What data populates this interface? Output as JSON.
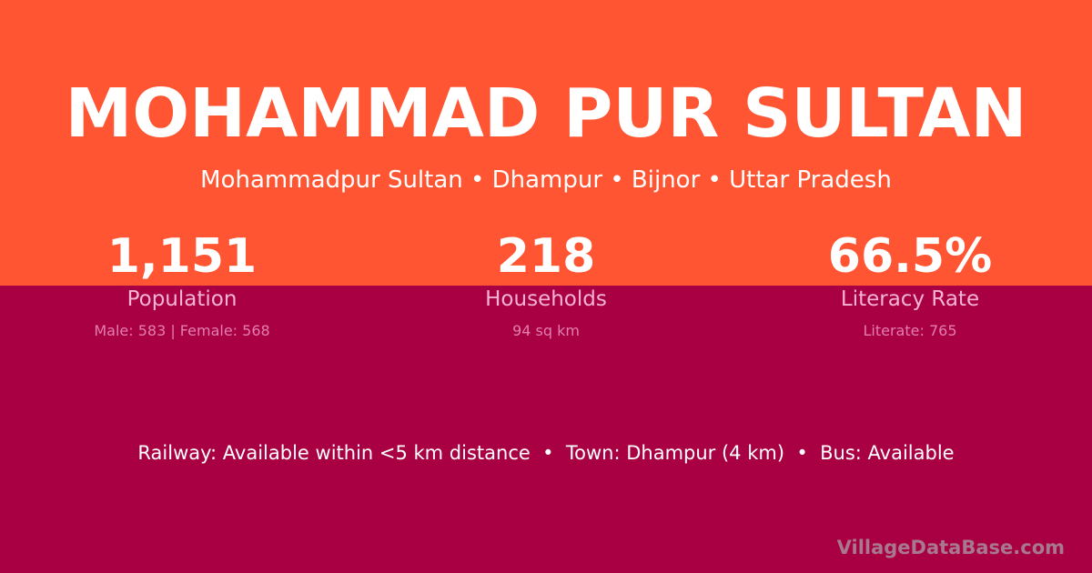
{
  "colors": {
    "top": "#ff5533",
    "bottom": "#a80042"
  },
  "title": "MOHAMMAD PUR SULTAN",
  "subtitle": "Mohammadpur Sultan • Dhampur • Bijnor • Uttar Pradesh",
  "stats": [
    {
      "value": "1,151",
      "label": "Population",
      "sub": "Male: 583 | Female: 568"
    },
    {
      "value": "218",
      "label": "Households",
      "sub": "94 sq km"
    },
    {
      "value": "66.5%",
      "label": "Literacy Rate",
      "sub": "Literate: 765"
    }
  ],
  "info": "Railway: Available within <5 km distance  •  Town: Dhampur (4 km)  •  Bus: Available",
  "watermark": "VillageDataBase.com"
}
